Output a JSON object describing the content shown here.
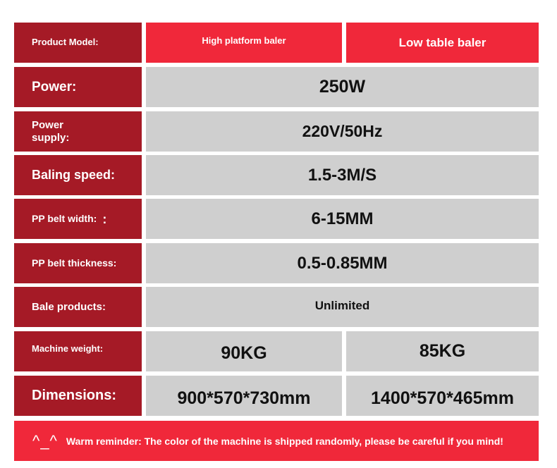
{
  "header": {
    "label": "Product Model:",
    "models": [
      "High platform baler",
      "Low table baler"
    ]
  },
  "rows": [
    {
      "label": "Power:",
      "value": "250W"
    },
    {
      "label": "Power supply:",
      "value": "220V/50Hz"
    },
    {
      "label": "Baling speed:",
      "value": "1.5-3M/S"
    },
    {
      "label": "PP belt width:",
      "mark": ":",
      "value": "6-15MM"
    },
    {
      "label": "PP belt thickness:",
      "value": "0.5-0.85MM"
    },
    {
      "label": "Bale products:",
      "value": "Unlimited"
    },
    {
      "label": "Machine weight:",
      "values": [
        "90KG",
        "85KG"
      ]
    },
    {
      "label": "Dimensions:",
      "values": [
        "900*570*730mm",
        "1400*570*465mm"
      ]
    }
  ],
  "reminder": {
    "icon": "^_^",
    "text": "Warm reminder: The color of the machine is shipped randomly, please be careful if you mind!"
  },
  "colors": {
    "label_bg": "#a51a26",
    "header_bg": "#f0283a",
    "value_bg": "#cfcfcf"
  }
}
